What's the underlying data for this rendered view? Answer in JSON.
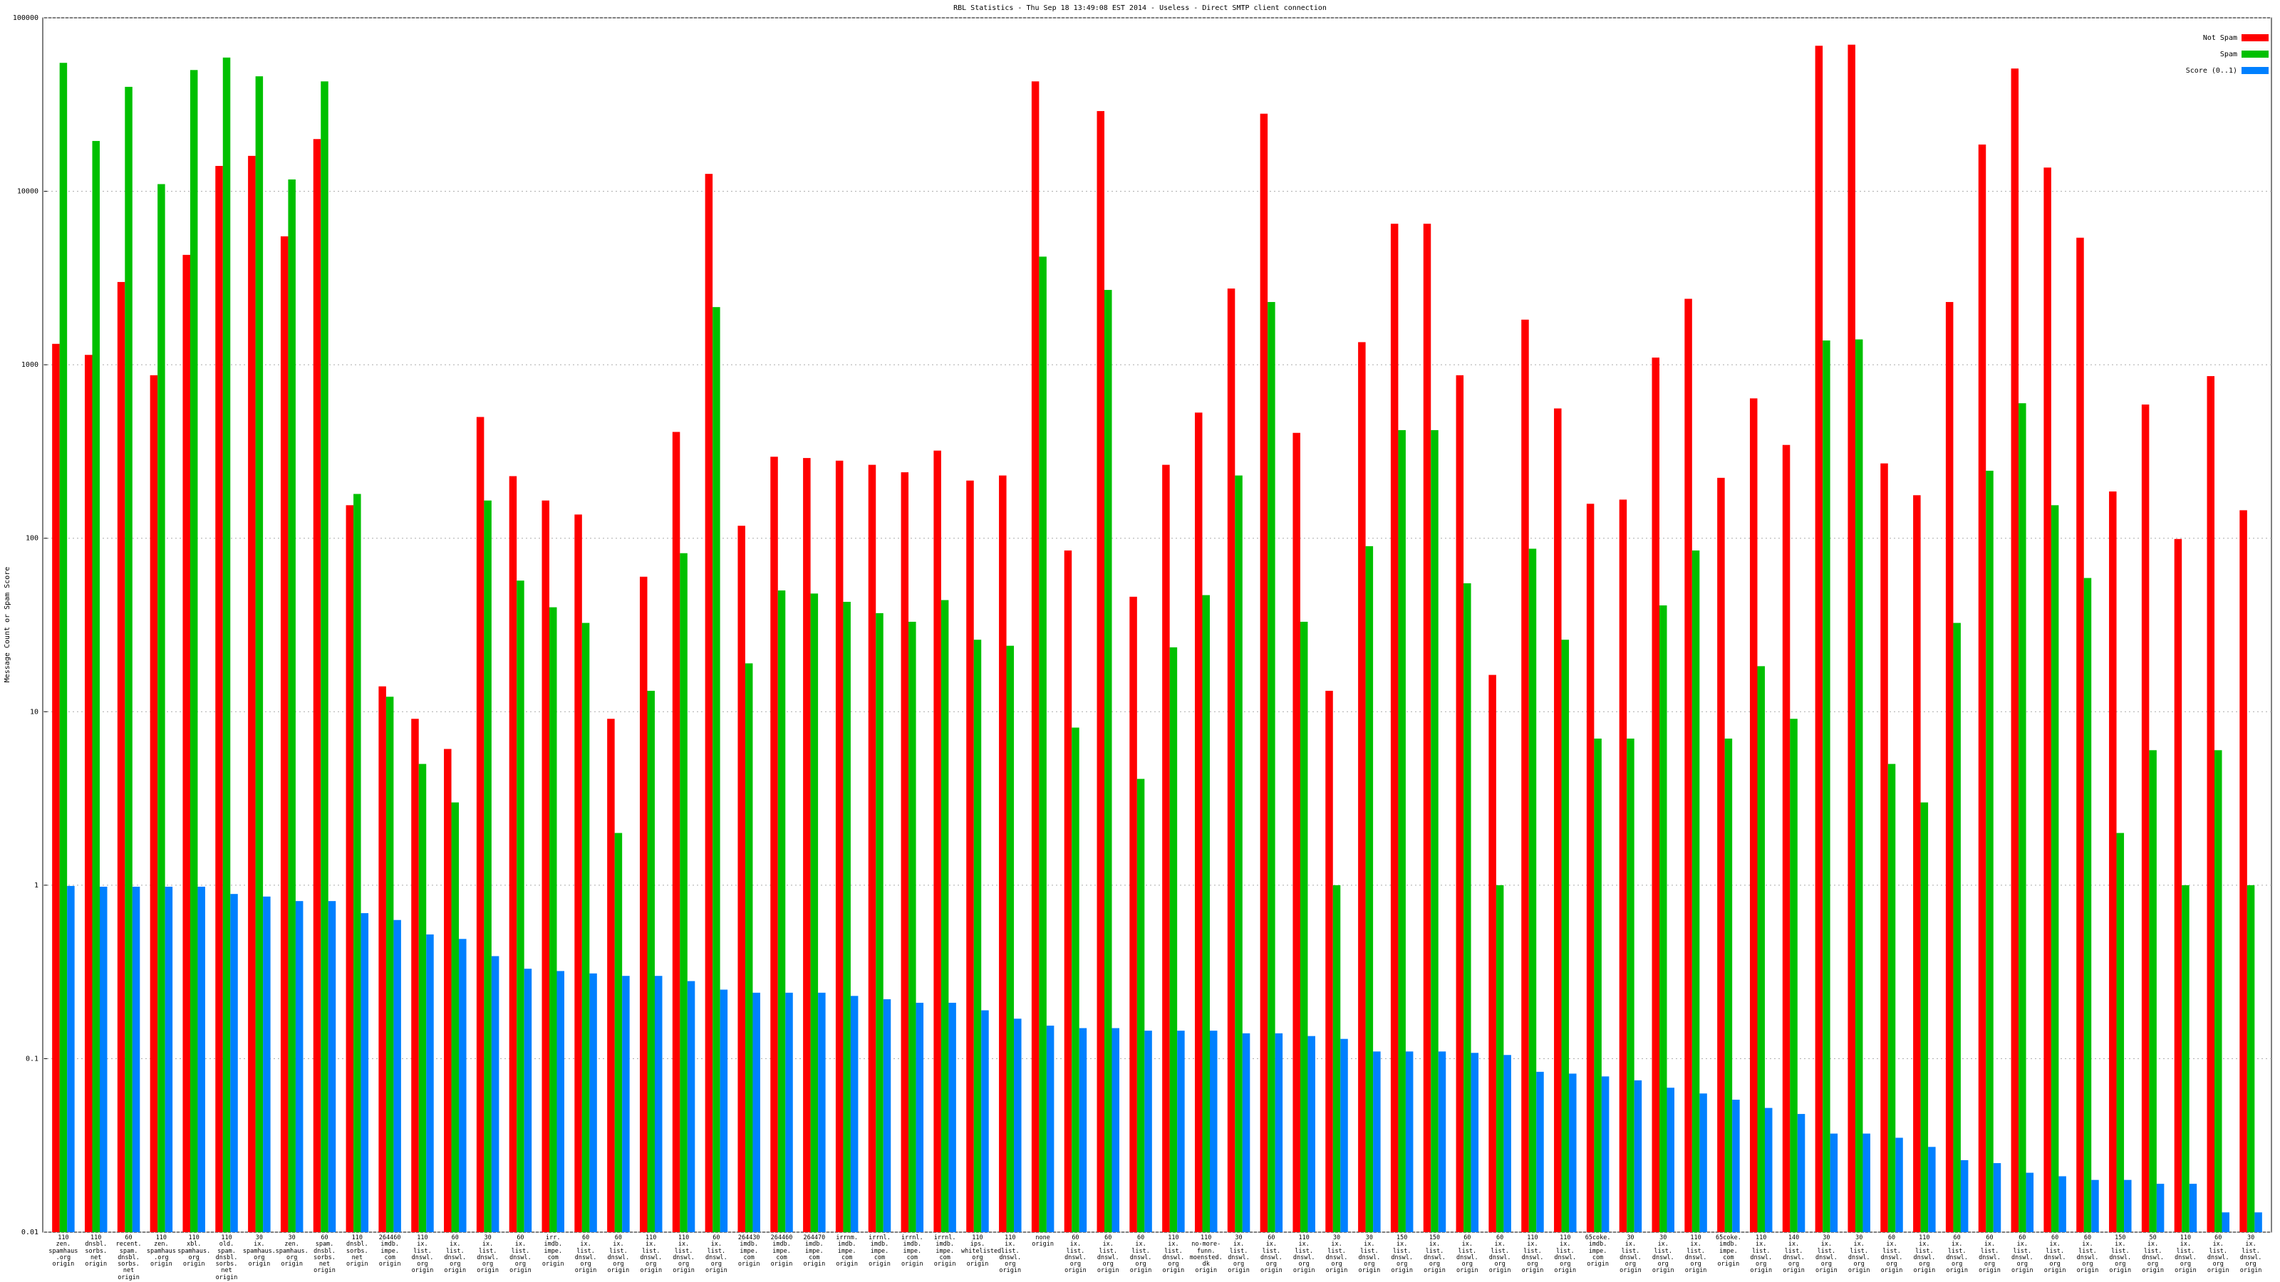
{
  "chart_data": {
    "type": "bar",
    "title": "RBL Statistics - Thu Sep 18 13:49:08 EST 2014 - Useless - Direct SMTP client connection",
    "ylabel": "Message Count or Spam Score",
    "log_scale": true,
    "grid": true,
    "legend": "upper right",
    "ylim": [
      0.01,
      100000
    ],
    "yticks": [
      0.01,
      0.1,
      1,
      10,
      100,
      1000,
      10000,
      100000
    ],
    "categories": [
      "110\nzen.\nspamhaus\n.org\norigin",
      "110\ndnsbl.\nsorbs.\nnet\norigin",
      "60\nrecent.\nspam.\ndnsbl.\nsorbs.\nnet\norigin",
      "110\nzen.\nspamhaus\n.org\norigin",
      "110\nxbl.\nspamhaus.\norg\norigin",
      "110\nold.\nspam.\ndnsbl.\nsorbs.\nnet\norigin",
      "30\nix.\nspamhaus.\norg\norigin",
      "30\nzen.\nspamhaus.\norg\norigin",
      "60\nspam.\ndnsbl.\nsorbs.\nnet\norigin",
      "110\ndnsbl.\nsorbs.\nnet\norigin",
      "264460\nimdb.\nimpe.\ncom\norigin",
      "110\nix.\nlist.\ndnswl.\norg\norigin",
      "60\nix.\nlist.\ndnswl.\norg\norigin",
      "30\nix.\nlist.\ndnswl.\norg\norigin",
      "60\nix.\nlist.\ndnswl.\norg\norigin",
      "irr.\nimdb.\nimpe.\ncom\norigin",
      "60\nix.\nlist.\ndnswl.\norg\norigin",
      "60\nix.\nlist.\ndnswl.\norg\norigin",
      "110\nix.\nlist.\ndnswl.\norg\norigin",
      "110\nix.\nlist.\ndnswl.\norg\norigin",
      "60\nix.\nlist.\ndnswl.\norg\norigin",
      "264430\nimdb.\nimpe.\ncom\norigin",
      "264460\nimdb.\nimpe.\ncom\norigin",
      "264470\nimdb.\nimpe.\ncom\norigin",
      "irrnm.\nimdb.\nimpe.\ncom\norigin",
      "irrnl.\nimdb.\nimpe.\ncom\norigin",
      "irrnl.\nimdb.\nimpe.\ncom\norigin",
      "irrnl.\nimdb.\nimpe.\ncom\norigin",
      "110\nips.\nwhitelisted.\norg\norigin",
      "110\nix.\nlist.\ndnswl.\norg\norigin",
      "none\norigin",
      "60\nix.\nlist.\ndnswl.\norg\norigin",
      "60\nix.\nlist.\ndnswl.\norg\norigin",
      "60\nix.\nlist.\ndnswl.\norg\norigin",
      "110\nix.\nlist.\ndnswl.\norg\norigin",
      "110\nno-more-funn.\nmoensted.\ndk\norigin",
      "30\nix.\nlist.\ndnswl.\norg\norigin",
      "60\nix.\nlist.\ndnswl.\norg\norigin",
      "110\nix.\nlist.\ndnswl.\norg\norigin",
      "30\nix.\nlist.\ndnswl.\norg\norigin",
      "30\nix.\nlist.\ndnswl.\norg\norigin",
      "150\nix.\nlist.\ndnswl.\norg\norigin",
      "150\nix.\nlist.\ndnswl.\norg\norigin",
      "60\nix.\nlist.\ndnswl.\norg\norigin",
      "60\nix.\nlist.\ndnswl.\norg\norigin",
      "110\nix.\nlist.\ndnswl.\norg\norigin",
      "110\nix.\nlist.\ndnswl.\norg\norigin",
      "65coke.\nimdb.\nimpe.\ncom\norigin",
      "30\nix.\nlist.\ndnswl.\norg\norigin",
      "30\nix.\nlist.\ndnswl.\norg\norigin",
      "110\nix.\nlist.\ndnswl.\norg\norigin",
      "65coke.\nimdb.\nimpe.\ncom\norigin",
      "110\nix.\nlist.\ndnswl.\norg\norigin",
      "140\nix.\nlist.\ndnswl.\norg\norigin",
      "30\nix.\nlist.\ndnswl.\norg\norigin",
      "30\nix.\nlist.\ndnswl.\norg\norigin",
      "60\nix.\nlist.\ndnswl.\norg\norigin",
      "110\nix.\nlist.\ndnswl.\norg\norigin",
      "60\nix.\nlist.\ndnswl.\norg\norigin",
      "60\nix.\nlist.\ndnswl.\norg\norigin",
      "60\nix.\nlist.\ndnswl.\norg\norigin",
      "60\nix.\nlist.\ndnswl.\norg\norigin",
      "60\nix.\nlist.\ndnswl.\norg\norigin",
      "150\nix.\nlist.\ndnswl.\norg\norigin",
      "50\nix.\nlist.\ndnswl.\norg\norigin",
      "110\nix.\nlist.\ndnswl.\norg\norigin",
      "60\nix.\nlist.\ndnswl.\norg\norigin",
      "30\nix.\nlist.\ndnswl.\norg\norigin"
    ],
    "series": [
      {
        "name": "Not Spam",
        "color": "#ff0000",
        "values": [
          1320,
          1140,
          3000,
          870,
          4300,
          14000,
          16000,
          5500,
          20000,
          155,
          14,
          9.1,
          6.1,
          500,
          228,
          165,
          137,
          9.1,
          60,
          410,
          12600,
          118,
          295,
          290,
          280,
          265,
          240,
          320,
          215,
          230,
          43000,
          85,
          29000,
          46,
          265,
          530,
          2750,
          28000,
          405,
          13.2,
          1350,
          6500,
          6500,
          870,
          16.3,
          1820,
          560,
          158,
          167,
          1100,
          2400,
          223,
          640,
          345,
          69000,
          70000,
          270,
          177,
          2300,
          18600,
          51000,
          13700,
          5400,
          186,
          590,
          99,
          860,
          145
        ]
      },
      {
        "name": "Spam",
        "color": "#00c000",
        "values": [
          55000,
          19500,
          40000,
          11000,
          50000,
          59000,
          46000,
          11700,
          43000,
          180,
          12.2,
          5,
          3,
          165,
          57,
          40,
          32.5,
          2,
          13.2,
          82,
          2150,
          19,
          50,
          48,
          43,
          37,
          33,
          44,
          26,
          24,
          4200,
          8.1,
          2700,
          4.1,
          23.5,
          47,
          230,
          2300,
          33,
          1,
          90,
          420,
          420,
          55,
          1,
          87,
          26,
          7,
          7,
          41,
          85,
          7,
          18.3,
          9.1,
          1380,
          1400,
          5,
          3,
          32.5,
          245,
          600,
          155,
          59,
          2,
          6,
          1,
          6,
          1
        ]
      },
      {
        "name": "Score (0..1)",
        "color": "#0080ff",
        "values": [
          0.99,
          0.98,
          0.98,
          0.98,
          0.98,
          0.89,
          0.86,
          0.81,
          0.81,
          0.69,
          0.63,
          0.52,
          0.49,
          0.39,
          0.33,
          0.32,
          0.31,
          0.3,
          0.3,
          0.28,
          0.25,
          0.24,
          0.24,
          0.24,
          0.23,
          0.22,
          0.21,
          0.21,
          0.19,
          0.17,
          0.155,
          0.15,
          0.15,
          0.145,
          0.145,
          0.145,
          0.14,
          0.14,
          0.135,
          0.13,
          0.11,
          0.11,
          0.11,
          0.108,
          0.105,
          0.084,
          0.082,
          0.079,
          0.075,
          0.068,
          0.063,
          0.058,
          0.052,
          0.048,
          0.037,
          0.037,
          0.035,
          0.031,
          0.026,
          0.025,
          0.022,
          0.021,
          0.02,
          0.02,
          0.019,
          0.019,
          0.013,
          0.013
        ]
      }
    ]
  }
}
